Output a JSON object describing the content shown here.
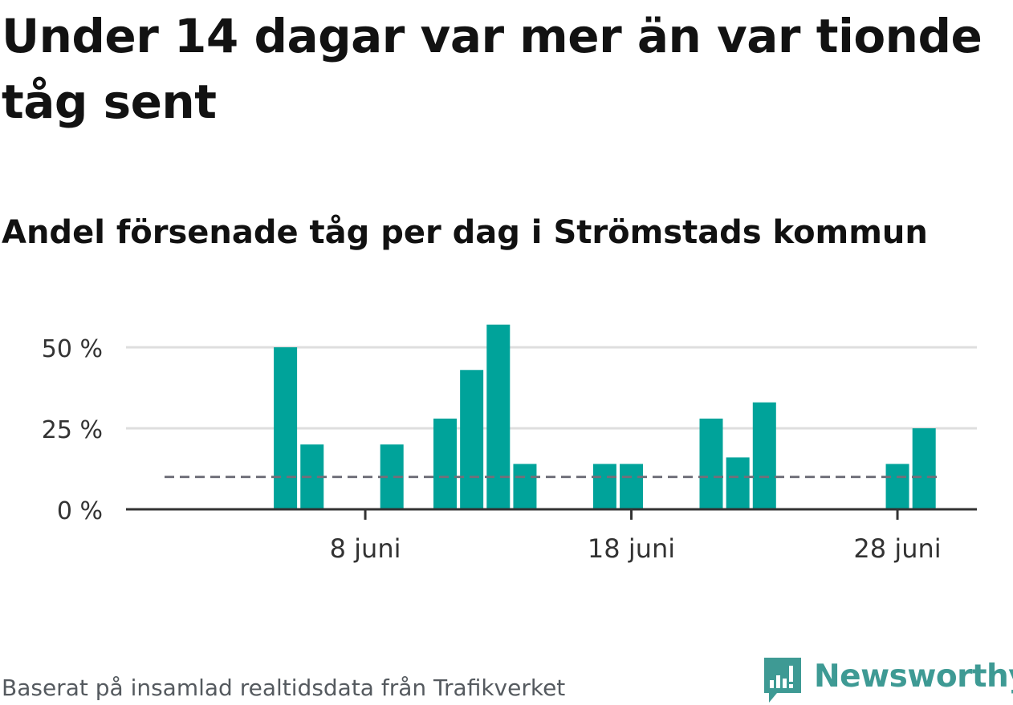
{
  "title": "Under 14 dagar var mer än var tionde tåg sent",
  "subtitle": "Andel försenade tåg per dag i Strömstads kommun",
  "source": "Baserat på insamlad realtidsdata från Trafikverket",
  "brand": {
    "name": "Newsworthy"
  },
  "colors": {
    "bar": "#00a39a",
    "reference_line": "#70707a",
    "grid": "#dedede",
    "axis": "#333333",
    "brand": "#3e9a94"
  },
  "chart_data": {
    "type": "bar",
    "title": "Andel försenade tåg per dag i Strömstads kommun",
    "xlabel": "",
    "ylabel": "",
    "ylim": [
      0,
      60
    ],
    "yticks": [
      0,
      25,
      50
    ],
    "ytick_labels": [
      "0 %",
      "25 %",
      "50 %"
    ],
    "x_range": [
      1,
      30
    ],
    "xticks": [
      8,
      18,
      28
    ],
    "xtick_labels": [
      "8 juni",
      "18 juni",
      "28 juni"
    ],
    "grid": true,
    "reference_line": {
      "value": 10
    },
    "series": [
      {
        "name": "Andel försenade tåg",
        "x": [
          1,
          2,
          3,
          4,
          5,
          6,
          7,
          8,
          9,
          10,
          11,
          12,
          13,
          14,
          15,
          16,
          17,
          18,
          19,
          20,
          21,
          22,
          23,
          24,
          25,
          26,
          27,
          28,
          29,
          30
        ],
        "values": [
          0,
          0,
          0,
          0,
          50,
          20,
          0,
          0,
          20,
          0,
          28,
          43,
          57,
          14,
          0,
          0,
          14,
          14,
          0,
          0,
          28,
          16,
          33,
          0,
          0,
          0,
          0,
          14,
          25,
          0
        ]
      }
    ]
  }
}
